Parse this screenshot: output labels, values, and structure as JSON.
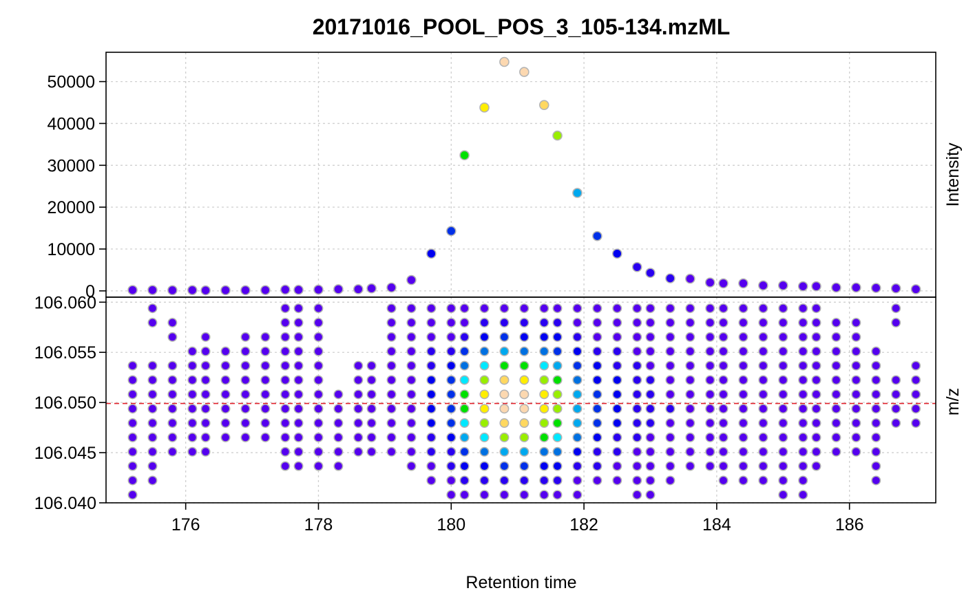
{
  "chart_data": {
    "type": "scatter",
    "title": "20171016_POOL_POS_3_105-134.mzML",
    "xlabel": "Retention time",
    "x_ticks": [
      "176",
      "178",
      "180",
      "182",
      "184",
      "186"
    ],
    "x_tick_values": [
      176,
      178,
      180,
      182,
      184,
      186
    ],
    "xlim": [
      174.8,
      187.3
    ],
    "intensity_panel": {
      "ylabel": "Intensity",
      "y_ticks": [
        "0",
        "10000",
        "20000",
        "30000",
        "40000",
        "50000"
      ],
      "y_tick_values": [
        0,
        10000,
        20000,
        30000,
        40000,
        50000
      ],
      "ylim": [
        -1500,
        57000
      ],
      "grid": true,
      "points": [
        [
          175.2,
          200
        ],
        [
          175.5,
          200
        ],
        [
          175.8,
          150
        ],
        [
          176.1,
          180
        ],
        [
          176.3,
          120
        ],
        [
          176.6,
          150
        ],
        [
          176.9,
          150
        ],
        [
          177.2,
          180
        ],
        [
          177.5,
          300
        ],
        [
          177.7,
          250
        ],
        [
          178.0,
          300
        ],
        [
          178.3,
          400
        ],
        [
          178.6,
          400
        ],
        [
          178.8,
          600
        ],
        [
          179.1,
          800
        ],
        [
          179.4,
          2600
        ],
        [
          179.7,
          8900
        ],
        [
          180.0,
          14300
        ],
        [
          180.2,
          32400
        ],
        [
          180.5,
          43800
        ],
        [
          180.8,
          54700
        ],
        [
          181.1,
          52300
        ],
        [
          181.4,
          44400
        ],
        [
          181.6,
          37100
        ],
        [
          181.9,
          23400
        ],
        [
          182.2,
          13100
        ],
        [
          182.5,
          8900
        ],
        [
          182.8,
          5700
        ],
        [
          183.0,
          4300
        ],
        [
          183.3,
          3000
        ],
        [
          183.6,
          2900
        ],
        [
          183.9,
          2000
        ],
        [
          184.1,
          1800
        ],
        [
          184.4,
          1800
        ],
        [
          184.7,
          1300
        ],
        [
          185.0,
          1300
        ],
        [
          185.3,
          1100
        ],
        [
          185.5,
          1100
        ],
        [
          185.8,
          800
        ],
        [
          186.1,
          800
        ],
        [
          186.4,
          700
        ],
        [
          186.7,
          600
        ],
        [
          187.0,
          400
        ]
      ]
    },
    "mz_panel": {
      "ylabel": "m/z",
      "y_ticks": [
        "106.040",
        "106.045",
        "106.050",
        "106.055",
        "106.060"
      ],
      "y_tick_values": [
        106.04,
        106.045,
        106.05,
        106.055,
        106.06
      ],
      "ylim": [
        106.04,
        106.0605
      ],
      "reference_mz": 106.0499,
      "grid": true
    },
    "color_scale": [
      "#5500ee",
      "#2a00f0",
      "#0000f0",
      "#0030e8",
      "#0070e0",
      "#00a8ee",
      "#00e8ff",
      "#00e000",
      "#99ee00",
      "#ffee00",
      "#ffd860",
      "#fcd8b0"
    ]
  }
}
